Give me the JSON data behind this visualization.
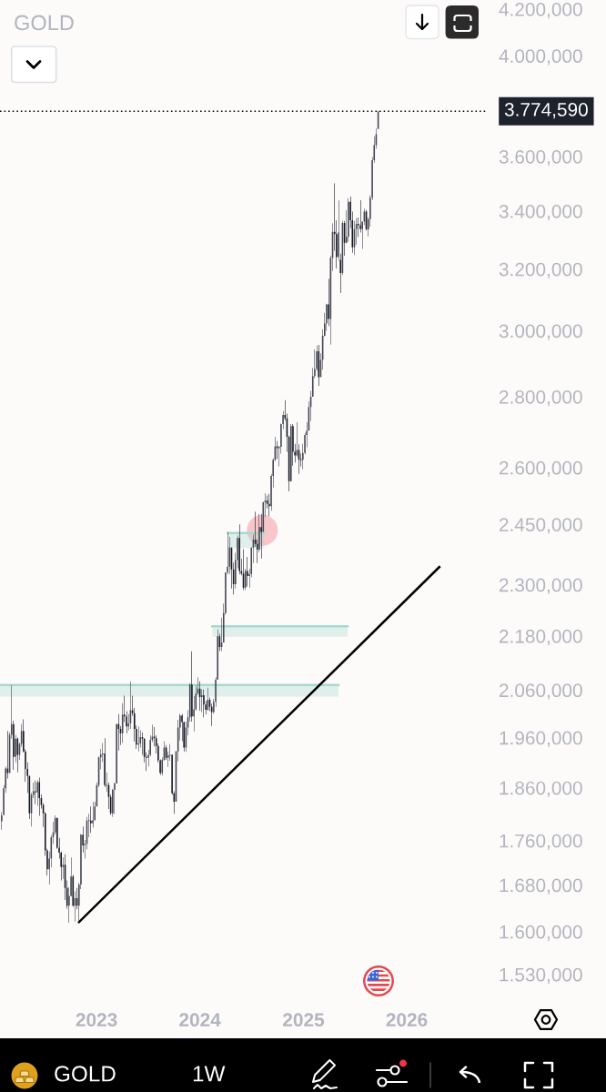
{
  "chart_data": {
    "type": "candlestick",
    "title": "GOLD",
    "log": true,
    "xlim": [
      "2022-01-25",
      "2026-10-14"
    ],
    "xticks": [
      {
        "value": "2023-01-01",
        "label": "2023"
      },
      {
        "value": "2024-01-01",
        "label": "2024"
      },
      {
        "value": "2025-01-01",
        "label": "2025"
      },
      {
        "value": "2026-01-01",
        "label": "2026"
      }
    ],
    "ylim": [
      1530,
      4200
    ],
    "yticks": [
      {
        "value": 1530,
        "label": "1.530,000"
      },
      {
        "value": 1600,
        "label": "1.600,000"
      },
      {
        "value": 1680,
        "label": "1.680,000"
      },
      {
        "value": 1760,
        "label": "1.760,000"
      },
      {
        "value": 1860,
        "label": "1.860,000"
      },
      {
        "value": 1960,
        "label": "1.960,000"
      },
      {
        "value": 2060,
        "label": "2.060,000"
      },
      {
        "value": 2180,
        "label": "2.180,000"
      },
      {
        "value": 2300,
        "label": "2.300,000"
      },
      {
        "value": 2450,
        "label": "2.450,000"
      },
      {
        "value": 2600,
        "label": "2.600,000"
      },
      {
        "value": 2800,
        "label": "2.800,000"
      },
      {
        "value": 3000,
        "label": "3.000,000"
      },
      {
        "value": 3200,
        "label": "3.200,000"
      },
      {
        "value": 3400,
        "label": "3.400,000"
      },
      {
        "value": 3600,
        "label": "3.600,000"
      },
      {
        "value": 4000,
        "label": "4.000,000"
      },
      {
        "value": 4200,
        "label": "4.200,000"
      }
    ],
    "ref_lines": [
      {
        "axis": "y",
        "value": 3774.59,
        "label": "3.774,590",
        "color": "#000000",
        "line_style": "dotted"
      }
    ],
    "annotations": [
      "GOLD",
      "1W"
    ],
    "series": [
      {
        "type": "line",
        "color": "#a5d9cd",
        "x": [
          "2022-01-25",
          "2025-05-05"
        ],
        "values": [
          2071,
          2071
        ],
        "lower": [
          2046,
          2046
        ],
        "upper": [
          2071,
          2071
        ]
      },
      {
        "type": "line",
        "color": "#a5d9cd",
        "x": [
          "2024-02-14",
          "2025-06-06"
        ],
        "values": [
          2202,
          2202
        ],
        "lower": [
          2178,
          2178
        ],
        "upper": [
          2202,
          2202
        ]
      },
      {
        "type": "line",
        "color": "#a5d9cd",
        "x": [
          "2024-04-09",
          "2024-08-14"
        ],
        "values": [
          2428,
          2428
        ],
        "lower": [
          2390,
          2390
        ],
        "upper": [
          2428,
          2428
        ]
      },
      {
        "type": "scatter",
        "color": "#f8c6ca",
        "marker": "circle",
        "x": [
          "2024-08-09"
        ],
        "values": [
          2435
        ]
      },
      {
        "type": "line",
        "color": "#000000",
        "x": [
          "2022-10-31",
          "2026-04-26"
        ],
        "values": [
          1616,
          2343
        ]
      },
      {
        "x": [
          "2022-01-31",
          "2022-02-07",
          "2022-02-14",
          "2022-02-21",
          "2022-02-28",
          "2022-03-07",
          "2022-03-14",
          "2022-03-21",
          "2022-03-28",
          "2022-04-04",
          "2022-04-11",
          "2022-04-18",
          "2022-04-25",
          "2022-05-02",
          "2022-05-09",
          "2022-05-16",
          "2022-05-23",
          "2022-05-30",
          "2022-06-06",
          "2022-06-13",
          "2022-06-20",
          "2022-06-27",
          "2022-07-04",
          "2022-07-11",
          "2022-07-18",
          "2022-07-25",
          "2022-08-01",
          "2022-08-08",
          "2022-08-15",
          "2022-08-22",
          "2022-08-29",
          "2022-09-05",
          "2022-09-12",
          "2022-09-19",
          "2022-09-26",
          "2022-10-03",
          "2022-10-10",
          "2022-10-17",
          "2022-10-24",
          "2022-10-31",
          "2022-11-07",
          "2022-11-14",
          "2022-11-21",
          "2022-11-28",
          "2022-12-05",
          "2022-12-12",
          "2022-12-19",
          "2022-12-26",
          "2023-01-02",
          "2023-01-09",
          "2023-01-16",
          "2023-01-23",
          "2023-01-30",
          "2023-02-06",
          "2023-02-13",
          "2023-02-20",
          "2023-02-27",
          "2023-03-06",
          "2023-03-13",
          "2023-03-20",
          "2023-03-27",
          "2023-04-03",
          "2023-04-10",
          "2023-04-17",
          "2023-04-24",
          "2023-05-01",
          "2023-05-08",
          "2023-05-15",
          "2023-05-22",
          "2023-05-29",
          "2023-06-05",
          "2023-06-12",
          "2023-06-19",
          "2023-06-26",
          "2023-07-03",
          "2023-07-10",
          "2023-07-17",
          "2023-07-24",
          "2023-07-31",
          "2023-08-07",
          "2023-08-14",
          "2023-08-21",
          "2023-08-28",
          "2023-09-04",
          "2023-09-11",
          "2023-09-18",
          "2023-09-25",
          "2023-10-02",
          "2023-10-09",
          "2023-10-16",
          "2023-10-23",
          "2023-10-30",
          "2023-11-06",
          "2023-11-13",
          "2023-11-20",
          "2023-11-27",
          "2023-12-04",
          "2023-12-11",
          "2023-12-18",
          "2023-12-25",
          "2024-01-01",
          "2024-01-08",
          "2024-01-15",
          "2024-01-22",
          "2024-01-29",
          "2024-02-05",
          "2024-02-12",
          "2024-02-19",
          "2024-02-26",
          "2024-03-04",
          "2024-03-11",
          "2024-03-18",
          "2024-03-25",
          "2024-04-01",
          "2024-04-08",
          "2024-04-15",
          "2024-04-22",
          "2024-04-29",
          "2024-05-06",
          "2024-05-13",
          "2024-05-20",
          "2024-05-27",
          "2024-06-03",
          "2024-06-10",
          "2024-06-17",
          "2024-06-24",
          "2024-07-01",
          "2024-07-08",
          "2024-07-15",
          "2024-07-22",
          "2024-07-29",
          "2024-08-05",
          "2024-08-12",
          "2024-08-19",
          "2024-08-26",
          "2024-09-02",
          "2024-09-09",
          "2024-09-16",
          "2024-09-23",
          "2024-09-30",
          "2024-10-07",
          "2024-10-14",
          "2024-10-21",
          "2024-10-28",
          "2024-11-04",
          "2024-11-11",
          "2024-11-18",
          "2024-11-25",
          "2024-12-02",
          "2024-12-09",
          "2024-12-16",
          "2024-12-23",
          "2024-12-30",
          "2025-01-06",
          "2025-01-13",
          "2025-01-20",
          "2025-01-27",
          "2025-02-03",
          "2025-02-10",
          "2025-02-17",
          "2025-02-24",
          "2025-03-03",
          "2025-03-10",
          "2025-03-17",
          "2025-03-24",
          "2025-03-31",
          "2025-04-07",
          "2025-04-14",
          "2025-04-21",
          "2025-04-28",
          "2025-05-05",
          "2025-05-12",
          "2025-05-19",
          "2025-05-26",
          "2025-06-02",
          "2025-06-09",
          "2025-06-16",
          "2025-06-23",
          "2025-06-30",
          "2025-07-07",
          "2025-07-14",
          "2025-07-21",
          "2025-07-28",
          "2025-08-04",
          "2025-08-11",
          "2025-08-18",
          "2025-08-25",
          "2025-09-01",
          "2025-09-08",
          "2025-09-15",
          "2025-09-22"
        ],
        "colors": [
          "#434651",
          "#434651",
          "#434651",
          "#131722",
          "#434651",
          "#434651",
          "#131722",
          "#434651",
          "#131722",
          "#434651",
          "#434651",
          "#131722",
          "#131722",
          "#131722",
          "#131722",
          "#434651",
          "#434651",
          "#131722",
          "#434651",
          "#131722",
          "#131722",
          "#131722",
          "#131722",
          "#131722",
          "#434651",
          "#434651",
          "#434651",
          "#434651",
          "#131722",
          "#131722",
          "#131722",
          "#434651",
          "#131722",
          "#131722",
          "#434651",
          "#434651",
          "#131722",
          "#434651",
          "#131722",
          "#434651",
          "#434651",
          "#131722",
          "#434651",
          "#434651",
          "#434651",
          "#131722",
          "#434651",
          "#434651",
          "#434651",
          "#434651",
          "#434651",
          "#434651",
          "#131722",
          "#434651",
          "#131722",
          "#131722",
          "#434651",
          "#434651",
          "#434651",
          "#131722",
          "#131722",
          "#434651",
          "#131722",
          "#131722",
          "#434651",
          "#434651",
          "#131722",
          "#131722",
          "#131722",
          "#434651",
          "#434651",
          "#131722",
          "#131722",
          "#131722",
          "#434651",
          "#434651",
          "#434651",
          "#131722",
          "#131722",
          "#131722",
          "#131722",
          "#434651",
          "#434651",
          "#131722",
          "#434651",
          "#434651",
          "#131722",
          "#131722",
          "#434651",
          "#434651",
          "#434651",
          "#131722",
          "#131722",
          "#434651",
          "#434651",
          "#434651",
          "#131722",
          "#434651",
          "#434651",
          "#434651",
          "#131722",
          "#434651",
          "#131722",
          "#131722",
          "#434651",
          "#131722",
          "#131722",
          "#434651",
          "#434651",
          "#434651",
          "#131722",
          "#434651",
          "#434651",
          "#434651",
          "#434651",
          "#434651",
          "#131722",
          "#131722",
          "#434651",
          "#434651",
          "#131722",
          "#131722",
          "#131722",
          "#434651",
          "#131722",
          "#434651",
          "#434651",
          "#434651",
          "#131722",
          "#131722",
          "#434651",
          "#131722",
          "#434651",
          "#434651",
          "#131722",
          "#131722",
          "#434651",
          "#434651",
          "#434651",
          "#131722",
          "#434651",
          "#434651",
          "#434651",
          "#131722",
          "#131722",
          "#131722",
          "#434651",
          "#131722",
          "#131722",
          "#434651",
          "#131722",
          "#131722",
          "#434651",
          "#434651",
          "#434651",
          "#434651",
          "#434651",
          "#434651",
          "#434651",
          "#434651",
          "#131722",
          "#434651",
          "#434651",
          "#434651",
          "#434651",
          "#131722",
          "#434651",
          "#434651",
          "#131722",
          "#131722",
          "#434651",
          "#131722",
          "#434651",
          "#131722",
          "#434651",
          "#434651",
          "#131722",
          "#131722",
          "#434651",
          "#434651",
          "#131722",
          "#131722",
          "#434651",
          "#434651",
          "#131722",
          "#434651",
          "#434651",
          "#434651",
          "#434651",
          "#434651",
          "#434651"
        ],
        "ohlc": [
          [
            1796,
            1813,
            1780,
            1807
          ],
          [
            1808,
            1865,
            1807,
            1859
          ],
          [
            1859,
            1902,
            1850,
            1898
          ],
          [
            1898,
            1974,
            1878,
            1889
          ],
          [
            1889,
            1971,
            1889,
            1966
          ],
          [
            1966,
            2070,
            1958,
            1988
          ],
          [
            1988,
            1995,
            1895,
            1921
          ],
          [
            1921,
            1966,
            1910,
            1958
          ],
          [
            1958,
            1960,
            1890,
            1925
          ],
          [
            1925,
            1950,
            1915,
            1947
          ],
          [
            1947,
            1988,
            1941,
            1974
          ],
          [
            1974,
            1998,
            1930,
            1932
          ],
          [
            1932,
            1936,
            1872,
            1897
          ],
          [
            1897,
            1910,
            1850,
            1883
          ],
          [
            1883,
            1884,
            1800,
            1811
          ],
          [
            1811,
            1850,
            1786,
            1846
          ],
          [
            1846,
            1870,
            1840,
            1853
          ],
          [
            1853,
            1874,
            1828,
            1851
          ],
          [
            1851,
            1875,
            1825,
            1871
          ],
          [
            1871,
            1880,
            1806,
            1840
          ],
          [
            1840,
            1847,
            1820,
            1827
          ],
          [
            1827,
            1830,
            1785,
            1811
          ],
          [
            1811,
            1813,
            1732,
            1742
          ],
          [
            1742,
            1745,
            1697,
            1708
          ],
          [
            1708,
            1740,
            1681,
            1727
          ],
          [
            1727,
            1770,
            1711,
            1766
          ],
          [
            1766,
            1795,
            1754,
            1775
          ],
          [
            1775,
            1807,
            1771,
            1802
          ],
          [
            1802,
            1803,
            1745,
            1747
          ],
          [
            1747,
            1765,
            1727,
            1738
          ],
          [
            1738,
            1740,
            1688,
            1712
          ],
          [
            1712,
            1729,
            1691,
            1716
          ],
          [
            1716,
            1735,
            1654,
            1675
          ],
          [
            1675,
            1688,
            1639,
            1644
          ],
          [
            1644,
            1676,
            1615,
            1661
          ],
          [
            1661,
            1729,
            1660,
            1695
          ],
          [
            1695,
            1698,
            1642,
            1644
          ],
          [
            1644,
            1669,
            1617,
            1657
          ],
          [
            1657,
            1675,
            1638,
            1644
          ],
          [
            1644,
            1684,
            1616,
            1681
          ],
          [
            1681,
            1772,
            1673,
            1771
          ],
          [
            1771,
            1786,
            1738,
            1751
          ],
          [
            1751,
            1761,
            1727,
            1754
          ],
          [
            1754,
            1804,
            1744,
            1797
          ],
          [
            1797,
            1810,
            1766,
            1797
          ],
          [
            1797,
            1824,
            1774,
            1792
          ],
          [
            1792,
            1833,
            1784,
            1798
          ],
          [
            1798,
            1833,
            1797,
            1824
          ],
          [
            1824,
            1870,
            1824,
            1865
          ],
          [
            1865,
            1922,
            1861,
            1920
          ],
          [
            1920,
            1937,
            1896,
            1926
          ],
          [
            1926,
            1949,
            1911,
            1928
          ],
          [
            1928,
            1959,
            1861,
            1865
          ],
          [
            1865,
            1890,
            1852,
            1865
          ],
          [
            1865,
            1870,
            1819,
            1842
          ],
          [
            1842,
            1847,
            1808,
            1811
          ],
          [
            1811,
            1858,
            1804,
            1856
          ],
          [
            1856,
            1870,
            1809,
            1868
          ],
          [
            1868,
            1989,
            1868,
            1988
          ],
          [
            1988,
            2009,
            1934,
            1978
          ],
          [
            1978,
            1984,
            1945,
            1969
          ],
          [
            1969,
            2032,
            1949,
            2008
          ],
          [
            2008,
            2048,
            1992,
            2004
          ],
          [
            2004,
            2015,
            1969,
            1983
          ],
          [
            1983,
            2009,
            1975,
            1990
          ],
          [
            1990,
            2079,
            1978,
            2017
          ],
          [
            2017,
            2048,
            2005,
            2011
          ],
          [
            2011,
            2022,
            1952,
            1978
          ],
          [
            1978,
            1985,
            1937,
            1946
          ],
          [
            1946,
            1983,
            1932,
            1948
          ],
          [
            1948,
            1975,
            1940,
            1961
          ],
          [
            1961,
            1971,
            1925,
            1958
          ],
          [
            1958,
            1959,
            1910,
            1921
          ],
          [
            1921,
            1930,
            1893,
            1919
          ],
          [
            1919,
            1935,
            1902,
            1925
          ],
          [
            1925,
            1965,
            1922,
            1955
          ],
          [
            1955,
            1987,
            1951,
            1962
          ],
          [
            1962,
            1982,
            1942,
            1959
          ],
          [
            1959,
            1965,
            1928,
            1943
          ],
          [
            1943,
            1948,
            1910,
            1914
          ],
          [
            1914,
            1916,
            1885,
            1889
          ],
          [
            1889,
            1920,
            1884,
            1915
          ],
          [
            1915,
            1953,
            1913,
            1940
          ],
          [
            1940,
            1945,
            1915,
            1919
          ],
          [
            1919,
            1932,
            1901,
            1924
          ],
          [
            1924,
            1947,
            1913,
            1925
          ],
          [
            1925,
            1926,
            1846,
            1849
          ],
          [
            1849,
            1853,
            1810,
            1833
          ],
          [
            1833,
            1933,
            1833,
            1932
          ],
          [
            1932,
            1997,
            1912,
            1981
          ],
          [
            1981,
            2009,
            1954,
            2006
          ],
          [
            2006,
            2009,
            1953,
            1992
          ],
          [
            1992,
            1993,
            1932,
            1940
          ],
          [
            1940,
            1993,
            1931,
            1981
          ],
          [
            1981,
            2017,
            1965,
            2002
          ],
          [
            2002,
            2075,
            1993,
            2072
          ],
          [
            2072,
            2145,
            1993,
            2004
          ],
          [
            2004,
            2047,
            1973,
            2019
          ],
          [
            2019,
            2070,
            2016,
            2053
          ],
          [
            2053,
            2088,
            2050,
            2063
          ],
          [
            2063,
            2079,
            2016,
            2045
          ],
          [
            2045,
            2062,
            2013,
            2049
          ],
          [
            2049,
            2061,
            2002,
            2029
          ],
          [
            2029,
            2037,
            2008,
            2018
          ],
          [
            2018,
            2065,
            2016,
            2039
          ],
          [
            2039,
            2044,
            2015,
            2024
          ],
          [
            2024,
            2031,
            1984,
            2013
          ],
          [
            2013,
            2041,
            2010,
            2035
          ],
          [
            2035,
            2088,
            2024,
            2083
          ],
          [
            2083,
            2195,
            2083,
            2179
          ],
          [
            2179,
            2185,
            2146,
            2155
          ],
          [
            2155,
            2222,
            2146,
            2165
          ],
          [
            2165,
            2255,
            2165,
            2233
          ],
          [
            2233,
            2330,
            2229,
            2330
          ],
          [
            2330,
            2431,
            2325,
            2344
          ],
          [
            2344,
            2418,
            2326,
            2391
          ],
          [
            2391,
            2392,
            2291,
            2337
          ],
          [
            2337,
            2354,
            2277,
            2301
          ],
          [
            2301,
            2378,
            2291,
            2360
          ],
          [
            2360,
            2422,
            2340,
            2415
          ],
          [
            2415,
            2450,
            2325,
            2333
          ],
          [
            2333,
            2364,
            2323,
            2327
          ],
          [
            2327,
            2387,
            2287,
            2293
          ],
          [
            2293,
            2339,
            2287,
            2333
          ],
          [
            2333,
            2368,
            2296,
            2321
          ],
          [
            2321,
            2339,
            2293,
            2326
          ],
          [
            2326,
            2392,
            2318,
            2391
          ],
          [
            2391,
            2424,
            2353,
            2411
          ],
          [
            2411,
            2483,
            2393,
            2400
          ],
          [
            2400,
            2412,
            2353,
            2386
          ],
          [
            2386,
            2477,
            2380,
            2443
          ],
          [
            2443,
            2477,
            2364,
            2431
          ],
          [
            2431,
            2509,
            2431,
            2507
          ],
          [
            2507,
            2531,
            2470,
            2512
          ],
          [
            2512,
            2525,
            2491,
            2503
          ],
          [
            2503,
            2529,
            2471,
            2497
          ],
          [
            2497,
            2582,
            2485,
            2577
          ],
          [
            2577,
            2625,
            2546,
            2621
          ],
          [
            2621,
            2685,
            2617,
            2658
          ],
          [
            2658,
            2673,
            2624,
            2653
          ],
          [
            2653,
            2660,
            2603,
            2657
          ],
          [
            2657,
            2722,
            2638,
            2721
          ],
          [
            2721,
            2758,
            2707,
            2747
          ],
          [
            2747,
            2790,
            2731,
            2737
          ],
          [
            2737,
            2751,
            2643,
            2685
          ],
          [
            2685,
            2688,
            2536,
            2563
          ],
          [
            2563,
            2721,
            2562,
            2715
          ],
          [
            2715,
            2721,
            2605,
            2643
          ],
          [
            2643,
            2665,
            2614,
            2633
          ],
          [
            2633,
            2726,
            2630,
            2648
          ],
          [
            2648,
            2664,
            2583,
            2622
          ],
          [
            2622,
            2639,
            2603,
            2621
          ],
          [
            2621,
            2665,
            2596,
            2640
          ],
          [
            2640,
            2696,
            2636,
            2690
          ],
          [
            2690,
            2726,
            2656,
            2702
          ],
          [
            2702,
            2786,
            2702,
            2770
          ],
          [
            2770,
            2817,
            2730,
            2800
          ],
          [
            2800,
            2886,
            2800,
            2861
          ],
          [
            2861,
            2942,
            2855,
            2882
          ],
          [
            2882,
            2954,
            2877,
            2936
          ],
          [
            2936,
            2956,
            2832,
            2858
          ],
          [
            2858,
            2930,
            2858,
            2910
          ],
          [
            2910,
            3004,
            2880,
            2984
          ],
          [
            2984,
            3057,
            2982,
            3023
          ],
          [
            3023,
            3086,
            3000,
            3084
          ],
          [
            3084,
            3167,
            3015,
            3037
          ],
          [
            3037,
            3245,
            2957,
            3237
          ],
          [
            3237,
            3357,
            3194,
            3327
          ],
          [
            3327,
            3500,
            3261,
            3319
          ],
          [
            3319,
            3368,
            3202,
            3240
          ],
          [
            3240,
            3438,
            3228,
            3325
          ],
          [
            3230,
            3252,
            3121,
            3187
          ],
          [
            3187,
            3365,
            3180,
            3358
          ],
          [
            3358,
            3365,
            3245,
            3289
          ],
          [
            3289,
            3403,
            3287,
            3310
          ],
          [
            3310,
            3446,
            3293,
            3433
          ],
          [
            3433,
            3452,
            3340,
            3368
          ],
          [
            3368,
            3398,
            3255,
            3274
          ],
          [
            3274,
            3365,
            3247,
            3337
          ],
          [
            3337,
            3375,
            3282,
            3355
          ],
          [
            3355,
            3377,
            3310,
            3350
          ],
          [
            3350,
            3439,
            3325,
            3337
          ],
          [
            3337,
            3363,
            3268,
            3363
          ],
          [
            3363,
            3409,
            3350,
            3398
          ],
          [
            3398,
            3404,
            3331,
            3336
          ],
          [
            3336,
            3378,
            3311,
            3372
          ],
          [
            3372,
            3457,
            3345,
            3448
          ],
          [
            3448,
            3598,
            3440,
            3586
          ],
          [
            3586,
            3676,
            3576,
            3643
          ],
          [
            3643,
            3707,
            3629,
            3685
          ],
          [
            3705,
            3774.59,
            3705,
            3774.59
          ]
        ]
      }
    ]
  }
}
